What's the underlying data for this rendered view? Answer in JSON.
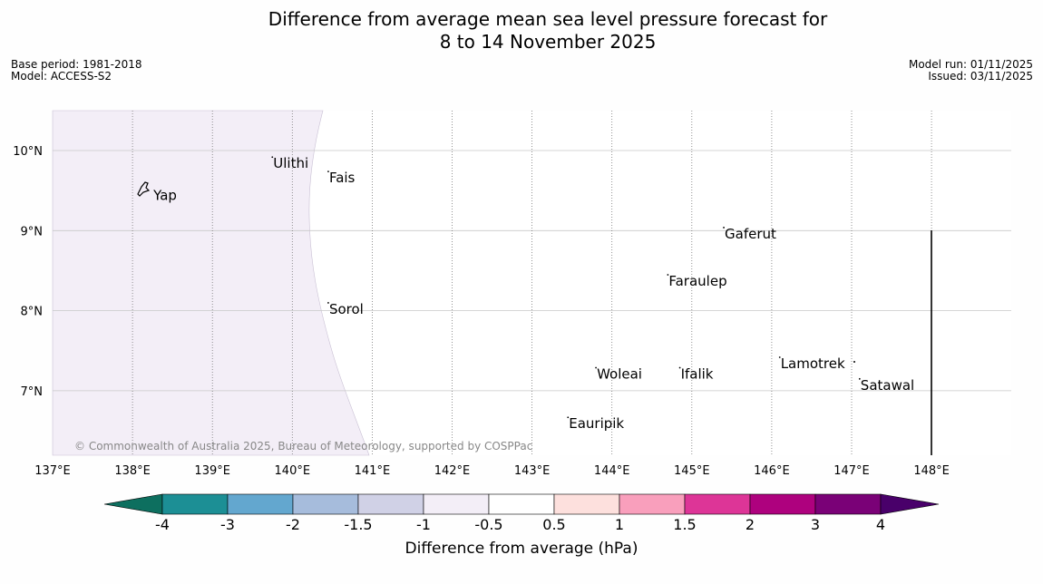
{
  "title": {
    "line1": "Difference from average mean sea level pressure forecast for",
    "line2": "8 to 14 November 2025"
  },
  "meta_left": {
    "base_period": "Base period: 1981-2018",
    "model": "Model: ACCESS-S2"
  },
  "meta_right": {
    "model_run": "Model run: 01/11/2025",
    "issued": "Issued: 03/11/2025"
  },
  "map": {
    "lon_labels": [
      "137°E",
      "138°E",
      "139°E",
      "140°E",
      "141°E",
      "142°E",
      "143°E",
      "144°E",
      "145°E",
      "146°E",
      "147°E",
      "148°E"
    ],
    "lat_labels": [
      "10°N",
      "9°N",
      "8°N",
      "7°N"
    ],
    "places": [
      {
        "name": "Yap",
        "lon": 138.25,
        "lat": 9.45
      },
      {
        "name": "Ulithi",
        "lon": 139.75,
        "lat": 9.85
      },
      {
        "name": "Fais",
        "lon": 140.45,
        "lat": 9.67
      },
      {
        "name": "Gaferut",
        "lon": 145.4,
        "lat": 8.97
      },
      {
        "name": "Faraulep",
        "lon": 144.7,
        "lat": 8.38
      },
      {
        "name": "Sorol",
        "lon": 140.45,
        "lat": 8.03
      },
      {
        "name": "Woleai",
        "lon": 143.8,
        "lat": 7.22
      },
      {
        "name": "Ifalik",
        "lon": 144.85,
        "lat": 7.22
      },
      {
        "name": "Lamotrek",
        "lon": 146.1,
        "lat": 7.35
      },
      {
        "name": "Satawal",
        "lon": 147.1,
        "lat": 7.08
      },
      {
        "name": "Eauripik",
        "lon": 143.45,
        "lat": 6.6
      }
    ],
    "copyright": "© Commonwealth of Australia 2025, Bureau of Meteorology, supported by COSPPac"
  },
  "colorbar": {
    "label": "Difference from average (hPa)",
    "ticks": [
      "-4",
      "-3",
      "-2",
      "-1.5",
      "-1",
      "-0.5",
      "0.5",
      "1",
      "1.5",
      "2",
      "3",
      "4"
    ],
    "colors": [
      "#0d6f5f",
      "#1c8f95",
      "#63a7cf",
      "#a6bcdc",
      "#d0d1e6",
      "#f3eef7",
      "#ffffff",
      "#fde0dd",
      "#f99fbc",
      "#dd3597",
      "#ae017e",
      "#7a0177",
      "#49006a"
    ],
    "anomaly_fill": "#f3eef7"
  }
}
